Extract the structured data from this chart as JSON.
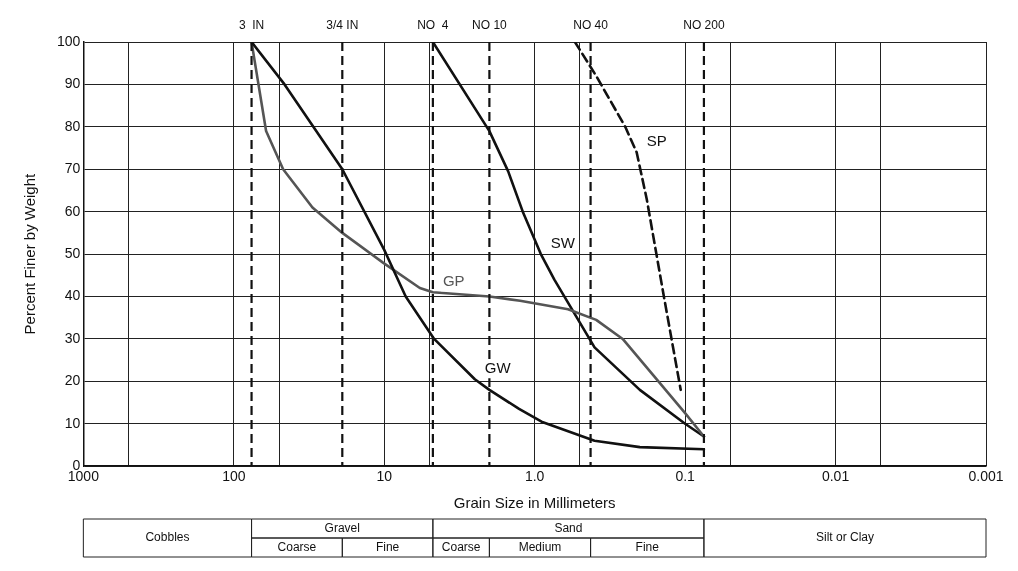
{
  "chart_data": {
    "type": "line",
    "xlabel": "Grain Size in Millimeters",
    "ylabel": "Percent Finer by Weight",
    "log": "x",
    "xlim": [
      1000,
      0.001
    ],
    "xticks": [
      1000,
      {
        "value": 500,
        "label": null
      },
      100,
      {
        "value": 50,
        "label": null
      },
      10,
      {
        "value": 5,
        "label": null
      },
      {
        "value": 1,
        "label": "1.0"
      },
      {
        "value": 0.5,
        "label": null
      },
      0.1,
      {
        "value": 0.05,
        "label": null
      },
      0.01,
      {
        "value": 0.005,
        "label": null
      },
      0.001
    ],
    "ylim": [
      0,
      100
    ],
    "yticks": [
      0,
      10,
      20,
      30,
      40,
      50,
      60,
      70,
      80,
      90,
      100
    ],
    "grid": true,
    "legend": false,
    "marker": "none",
    "series": [
      {
        "name": "GW",
        "color": "#111111",
        "line_style": "solid",
        "x": [
          76.2,
          46,
          19,
          10,
          7.2,
          4.66,
          2.5,
          2.0,
          1.27,
          0.9,
          0.4,
          0.2,
          0.075
        ],
        "values": [
          100,
          90,
          70,
          51,
          40,
          30,
          20.5,
          18,
          13.5,
          10.5,
          6,
          4.5,
          4
        ]
      },
      {
        "name": "GP",
        "color": "#555555",
        "line_style": "solid",
        "x": [
          76.2,
          61,
          47,
          30,
          19,
          10.2,
          5.8,
          4.75,
          2.0,
          1.25,
          0.6,
          0.39,
          0.26,
          0.1,
          0.075
        ],
        "values": [
          100,
          79,
          70,
          61,
          55,
          48,
          42,
          41,
          40,
          39,
          37,
          34.5,
          30,
          12.5,
          7
        ]
      },
      {
        "name": "SW",
        "color": "#111111",
        "line_style": "solid",
        "x": [
          4.75,
          2.0,
          1.5,
          1.2,
          0.91,
          0.74,
          0.4,
          0.2,
          0.1,
          0.075
        ],
        "values": [
          100,
          79,
          69.5,
          60,
          50,
          44,
          28,
          18,
          10,
          7
        ]
      },
      {
        "name": "SP",
        "color": "#111111",
        "line_style": "dashed",
        "x": [
          0.54,
          0.39,
          0.25,
          0.21,
          0.18,
          0.14,
          0.107
        ],
        "values": [
          100,
          92,
          80,
          74,
          63,
          41,
          18
        ]
      }
    ],
    "ref_lines": [
      {
        "axis": "x",
        "value": 76.2,
        "label": "3  IN",
        "line_style": "dashed",
        "color": "#111111"
      },
      {
        "axis": "x",
        "value": 19,
        "label": "3/4 IN",
        "line_style": "dashed",
        "color": "#111111"
      },
      {
        "axis": "x",
        "value": 4.75,
        "label": "NO  4",
        "line_style": "dashed",
        "color": "#111111"
      },
      {
        "axis": "x",
        "value": 2.0,
        "label": "NO 10",
        "line_style": "dashed",
        "color": "#111111"
      },
      {
        "axis": "x",
        "value": 0.425,
        "label": "NO 40",
        "line_style": "dashed",
        "color": "#111111"
      },
      {
        "axis": "x",
        "value": 0.075,
        "label": "NO 200",
        "line_style": "dashed",
        "color": "#111111"
      }
    ],
    "annotations": [
      "Cobbles",
      "Gravel",
      "Sand",
      "Silt or Clay",
      "Coarse",
      "Fine",
      "Coarse",
      "Medium",
      "Fine"
    ]
  }
}
